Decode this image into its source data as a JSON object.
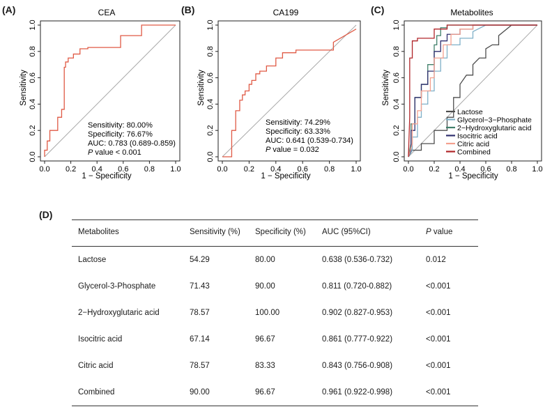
{
  "panels": {
    "a": {
      "tag": "(A)"
    },
    "b": {
      "tag": "(B)"
    },
    "c": {
      "tag": "(C)"
    },
    "d": {
      "tag": "(D)"
    }
  },
  "chart_data": [
    {
      "type": "line",
      "title": "CEA",
      "xlabel": "1 − Specificity",
      "ylabel": "Sensitivity",
      "xlim": [
        0,
        1
      ],
      "ylim": [
        0,
        1
      ],
      "xticks": [
        "0.0",
        "0.2",
        "0.4",
        "0.6",
        "0.8",
        "1.0"
      ],
      "yticks": [
        "0.0",
        "0.2",
        "0.4",
        "0.6",
        "0.8",
        "1.0"
      ],
      "color": "#e05a45",
      "reference_line": true,
      "series": [
        {
          "x": [
            0,
            0,
            0.02,
            0.02,
            0.04,
            0.04,
            0.1,
            0.1,
            0.13,
            0.13,
            0.15,
            0.15,
            0.16,
            0.16,
            0.18,
            0.18,
            0.22,
            0.22,
            0.27,
            0.27,
            0.33,
            0.33,
            0.58,
            0.58,
            0.74,
            0.74,
            1.0
          ],
          "y": [
            0,
            0.05,
            0.05,
            0.12,
            0.12,
            0.2,
            0.2,
            0.3,
            0.3,
            0.36,
            0.36,
            0.68,
            0.68,
            0.72,
            0.72,
            0.75,
            0.75,
            0.78,
            0.78,
            0.82,
            0.82,
            0.83,
            0.83,
            0.92,
            0.92,
            1.0,
            1.0
          ]
        }
      ],
      "annotations": [
        "Sensitivity: 80.00%",
        "Specificity: 76.67%",
        "AUC: 0.783 (0.689-0.859)"
      ],
      "p_label": "P",
      "p_text": " value < 0.001"
    },
    {
      "type": "line",
      "title": "CA199",
      "xlabel": "1 − Specificity",
      "ylabel": "Sensitivity",
      "xlim": [
        0,
        1
      ],
      "ylim": [
        0,
        1
      ],
      "xticks": [
        "0.0",
        "0.2",
        "0.4",
        "0.6",
        "0.8",
        "1.0"
      ],
      "yticks": [
        "0.0",
        "0.2",
        "0.4",
        "0.6",
        "0.8",
        "1.0"
      ],
      "color": "#e05a45",
      "reference_line": true,
      "series": [
        {
          "x": [
            0,
            0.07,
            0.07,
            0.1,
            0.1,
            0.13,
            0.13,
            0.15,
            0.15,
            0.17,
            0.17,
            0.2,
            0.2,
            0.22,
            0.22,
            0.25,
            0.25,
            0.28,
            0.28,
            0.33,
            0.33,
            0.4,
            0.4,
            0.45,
            0.45,
            0.55,
            0.55,
            0.83,
            0.83,
            1.0
          ],
          "y": [
            0,
            0,
            0.2,
            0.2,
            0.35,
            0.35,
            0.43,
            0.43,
            0.47,
            0.47,
            0.5,
            0.5,
            0.55,
            0.55,
            0.58,
            0.58,
            0.63,
            0.63,
            0.65,
            0.65,
            0.69,
            0.69,
            0.75,
            0.75,
            0.79,
            0.79,
            0.81,
            0.81,
            0.87,
            0.97
          ]
        }
      ],
      "annotations": [
        "Sensitivity: 74.29%",
        "Specificity: 63.33%",
        "AUC: 0.641 (0.539-0.734)"
      ],
      "p_label": "P",
      "p_text": " value = 0.032"
    },
    {
      "type": "line",
      "title": "Metabolites",
      "xlabel": "1 − Specificity",
      "ylabel": "Sensitivity",
      "xlim": [
        0,
        1
      ],
      "ylim": [
        0,
        1
      ],
      "xticks": [
        "0.0",
        "0.2",
        "0.4",
        "0.6",
        "0.8",
        "1.0"
      ],
      "yticks": [
        "0.0",
        "0.2",
        "0.4",
        "0.6",
        "0.8",
        "1.0"
      ],
      "reference_line": true,
      "legend": "bottom-right",
      "series": [
        {
          "name": "Lactose",
          "color": "#4d4d4d",
          "x": [
            0,
            0.03,
            0.1,
            0.1,
            0.2,
            0.2,
            0.3,
            0.3,
            0.35,
            0.35,
            0.4,
            0.4,
            0.45,
            0.5,
            0.5,
            0.55,
            0.6,
            0.6,
            0.65,
            0.7,
            0.7,
            0.8,
            1.0
          ],
          "y": [
            0,
            0.05,
            0.05,
            0.1,
            0.1,
            0.2,
            0.2,
            0.3,
            0.3,
            0.45,
            0.45,
            0.55,
            0.62,
            0.62,
            0.7,
            0.75,
            0.75,
            0.82,
            0.85,
            0.85,
            0.92,
            1.0,
            1.0
          ]
        },
        {
          "name": "Glycerol−3−Phosphate",
          "color": "#7fb0c8",
          "x": [
            0,
            0.03,
            0.03,
            0.07,
            0.07,
            0.1,
            0.1,
            0.15,
            0.15,
            0.2,
            0.2,
            0.25,
            0.25,
            0.3,
            0.3,
            0.4,
            0.4,
            0.5,
            0.5,
            0.6,
            1.0
          ],
          "y": [
            0,
            0.05,
            0.15,
            0.15,
            0.3,
            0.3,
            0.4,
            0.4,
            0.5,
            0.5,
            0.65,
            0.65,
            0.75,
            0.75,
            0.85,
            0.85,
            0.9,
            0.9,
            0.95,
            1.0,
            1.0
          ]
        },
        {
          "name": "2−Hydroxyglutaric acid",
          "color": "#3f7f6a",
          "x": [
            0,
            0.02,
            0.02,
            0.05,
            0.05,
            0.1,
            0.1,
            0.15,
            0.15,
            0.2,
            0.2,
            0.22,
            0.22,
            0.25,
            0.25,
            0.3,
            0.3,
            1.0
          ],
          "y": [
            0,
            0.1,
            0.25,
            0.25,
            0.45,
            0.45,
            0.55,
            0.55,
            0.7,
            0.7,
            0.85,
            0.85,
            0.92,
            0.92,
            0.98,
            0.98,
            1.0,
            1.0
          ]
        },
        {
          "name": "Isocitric acid",
          "color": "#2e2e6e",
          "x": [
            0,
            0.02,
            0.02,
            0.05,
            0.05,
            0.1,
            0.1,
            0.15,
            0.15,
            0.2,
            0.2,
            0.25,
            0.25,
            0.3,
            0.3,
            0.4,
            0.4,
            0.5,
            0.5,
            1.0
          ],
          "y": [
            0,
            0.05,
            0.2,
            0.2,
            0.45,
            0.45,
            0.55,
            0.55,
            0.65,
            0.65,
            0.8,
            0.8,
            0.88,
            0.88,
            0.93,
            0.93,
            0.97,
            0.97,
            1.0,
            1.0
          ]
        },
        {
          "name": "Citric acid",
          "color": "#f4a08e",
          "x": [
            0,
            0.03,
            0.03,
            0.07,
            0.07,
            0.1,
            0.1,
            0.17,
            0.17,
            0.2,
            0.2,
            0.27,
            0.27,
            0.33,
            0.33,
            0.4,
            0.4,
            0.5,
            0.5,
            1.0
          ],
          "y": [
            0,
            0.1,
            0.25,
            0.25,
            0.35,
            0.35,
            0.5,
            0.5,
            0.6,
            0.6,
            0.75,
            0.75,
            0.85,
            0.85,
            0.93,
            0.93,
            0.97,
            0.97,
            1.0,
            1.0
          ]
        },
        {
          "name": "Combined",
          "color": "#b02428",
          "x": [
            0,
            0.01,
            0.01,
            0.03,
            0.03,
            0.07,
            0.07,
            0.2,
            0.2,
            0.3,
            0.3,
            1.0
          ],
          "y": [
            0,
            0.3,
            0.75,
            0.75,
            0.88,
            0.88,
            0.9,
            0.9,
            0.97,
            0.97,
            1.0,
            1.0
          ]
        }
      ]
    },
    {
      "type": "table",
      "columns": [
        "Metabolites",
        "Sensitivity (%)",
        "Specificity (%)",
        "AUC (95%CI)",
        "P",
        " value"
      ],
      "rows": [
        [
          "Lactose",
          "54.29",
          "80.00",
          "0.638 (0.536-0.732)",
          "0.012"
        ],
        [
          "Glycerol-3-Phosphate",
          "71.43",
          "90.00",
          "0.811 (0.720-0.882)",
          "<0.001"
        ],
        [
          "2−Hydroxyglutaric acid",
          "78.57",
          "100.00",
          "0.902 (0.827-0.953)",
          "<0.001"
        ],
        [
          "Isocitric acid",
          "67.14",
          "96.67",
          "0.861 (0.777-0.922)",
          "<0.001"
        ],
        [
          "Citric acid",
          "78.57",
          "83.33",
          "0.843 (0.756-0.908)",
          "<0.001"
        ],
        [
          "Combined",
          "90.00",
          "96.67",
          "0.961 (0.922-0.998)",
          "<0.001"
        ]
      ]
    }
  ]
}
